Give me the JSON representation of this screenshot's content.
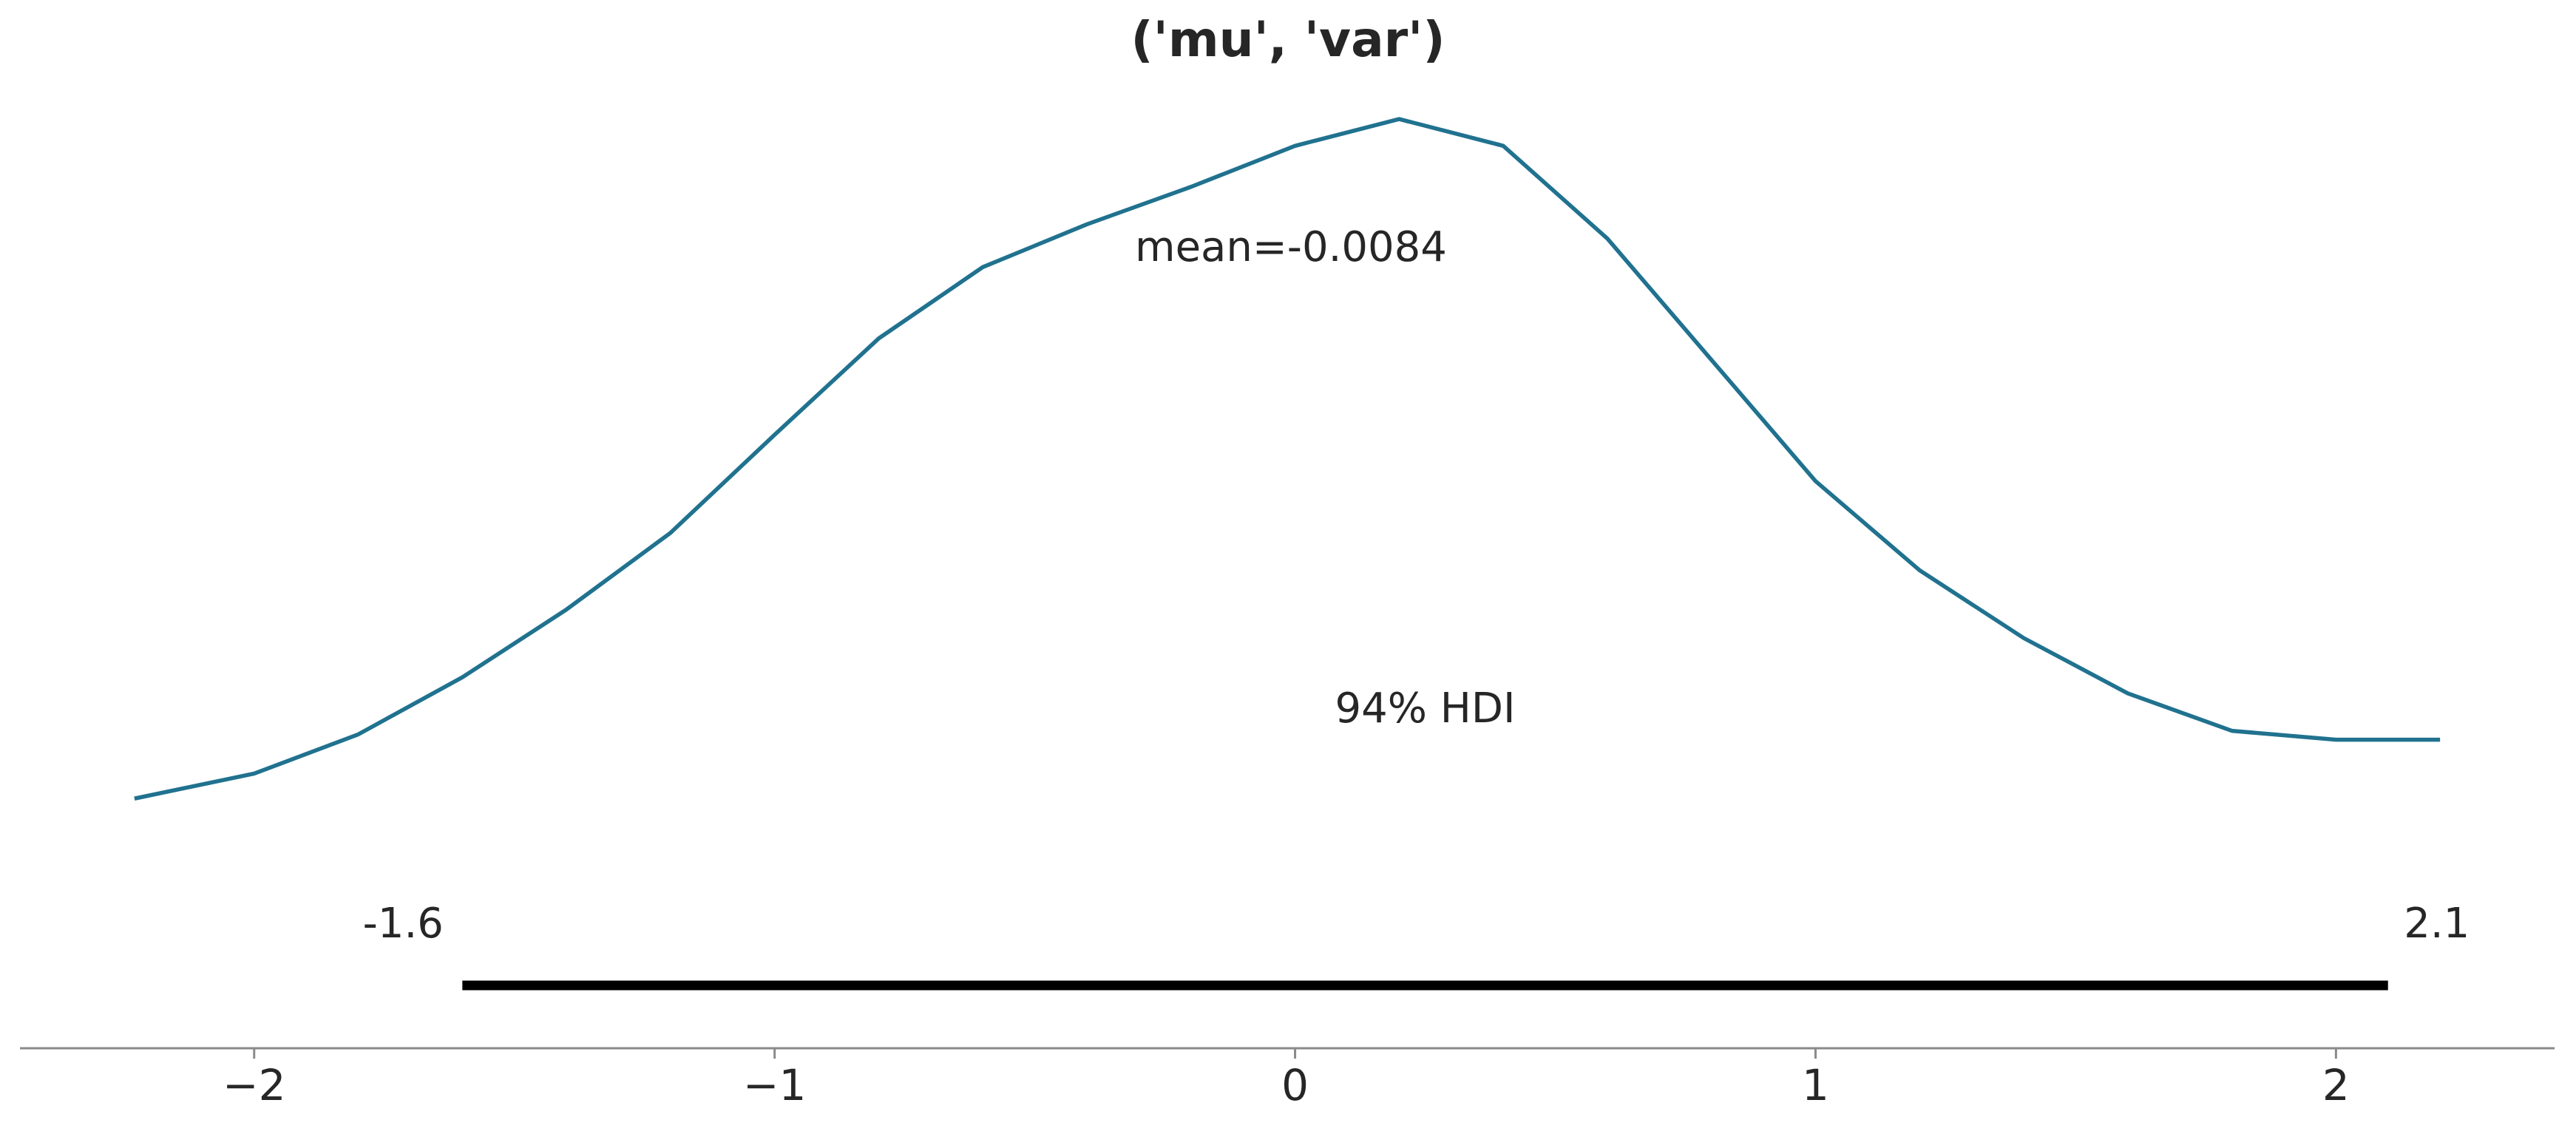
{
  "chart_data": {
    "type": "line",
    "title": "('mu', 'var')",
    "annotations": [
      "mean=-0.0084",
      "94% HDI"
    ],
    "x": [
      -2.23,
      -2.0,
      -1.8,
      -1.6,
      -1.4,
      -1.2,
      -1.0,
      -0.8,
      -0.6,
      -0.4,
      -0.2,
      0.0,
      0.2,
      0.4,
      0.6,
      0.8,
      1.0,
      1.2,
      1.4,
      1.6,
      1.8,
      2.0,
      2.2
    ],
    "series": [
      {
        "name": "('mu', 'var')",
        "color": "#20728f",
        "values": [
          0.02,
          0.034,
          0.056,
          0.088,
          0.126,
          0.169,
          0.224,
          0.278,
          0.318,
          0.342,
          0.363,
          0.386,
          0.401,
          0.386,
          0.334,
          0.266,
          0.198,
          0.148,
          0.11,
          0.079,
          0.058,
          0.053,
          0.053
        ]
      }
    ],
    "hdi": [
      -1.6,
      2.1
    ],
    "xlim": [
      -2.45,
      2.42
    ],
    "ylim": [
      -0.12,
      0.44
    ],
    "xticks": [
      {
        "value": -2,
        "label": "−2"
      },
      {
        "value": -1,
        "label": "−1"
      },
      0,
      1,
      2
    ]
  }
}
